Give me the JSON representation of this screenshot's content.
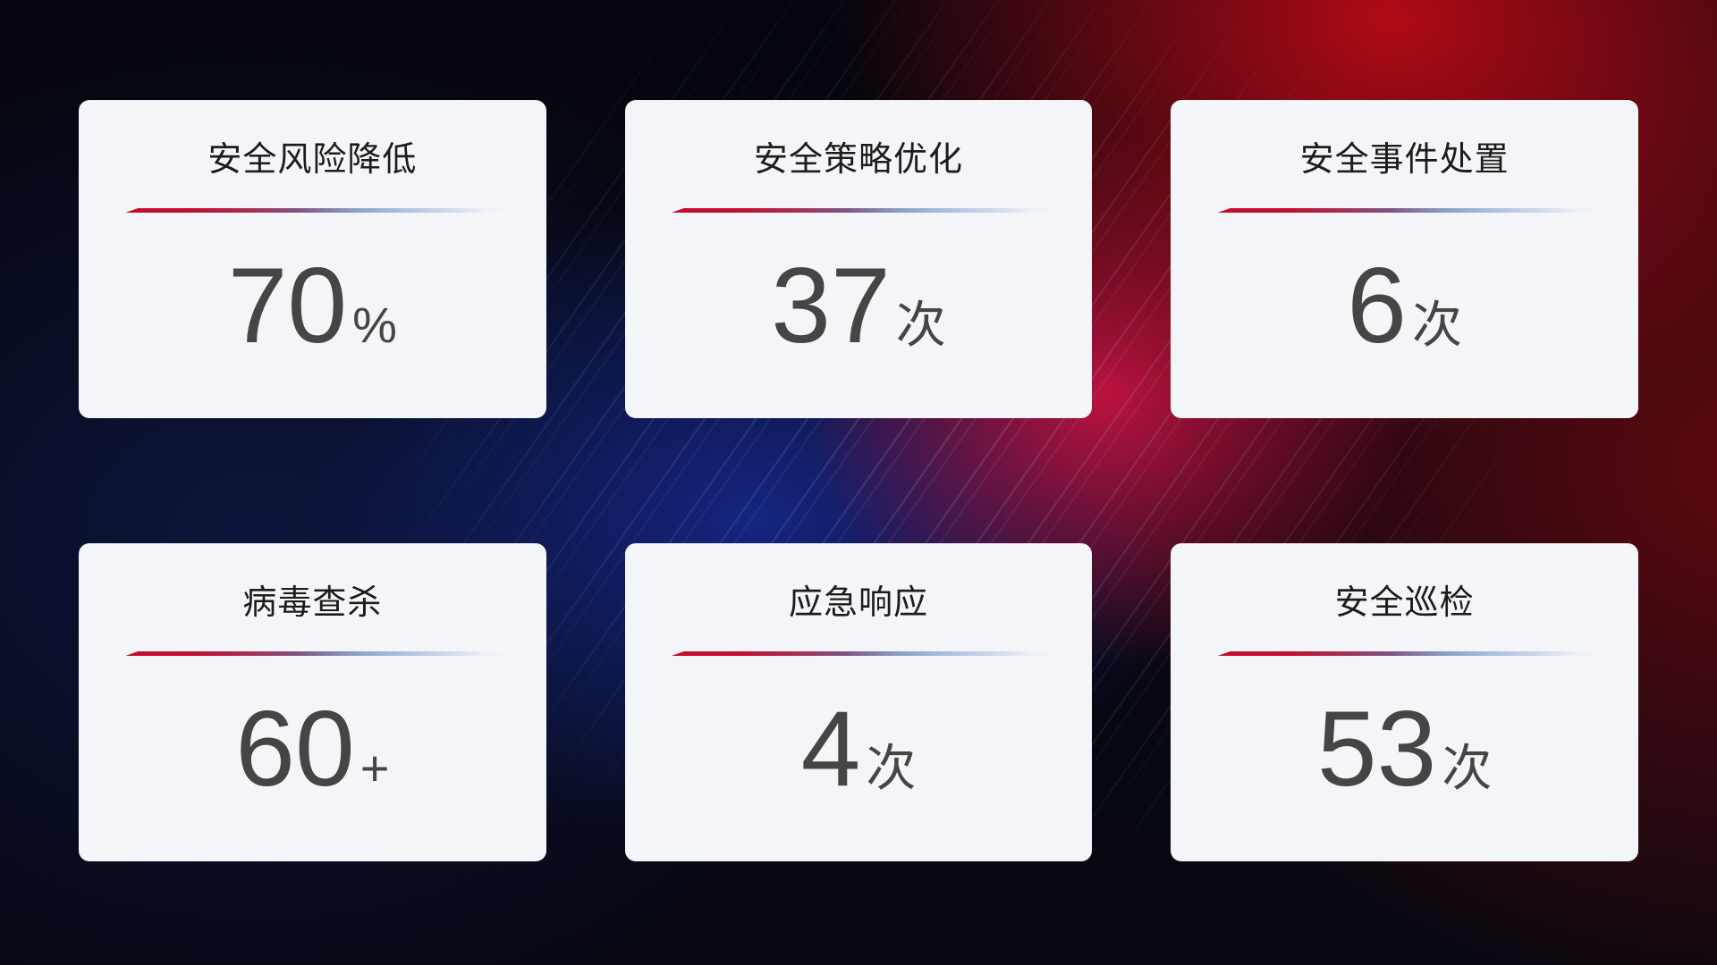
{
  "cards": [
    {
      "title": "安全风险降低",
      "value": "70",
      "unit": "%"
    },
    {
      "title": "安全策略优化",
      "value": "37",
      "unit": "次"
    },
    {
      "title": "安全事件处置",
      "value": "6",
      "unit": "次"
    },
    {
      "title": "病毒查杀",
      "value": "60",
      "unit": "+"
    },
    {
      "title": "应急响应",
      "value": "4",
      "unit": "次"
    },
    {
      "title": "安全巡检",
      "value": "53",
      "unit": "次"
    }
  ],
  "colors": {
    "card_background": "#f4f5f8",
    "title_text": "#1c1c1c",
    "value_text": "#454545",
    "divider_red": "#c60b2f",
    "divider_blue": "#aabdde",
    "backdrop_navy": "#0d1640",
    "backdrop_blue_glow": "#162686",
    "backdrop_red": "#b70a16",
    "backdrop_crimson_bloom": "#c91342",
    "backdrop_maroon": "#6c0810",
    "backdrop_base": "#05060d"
  }
}
